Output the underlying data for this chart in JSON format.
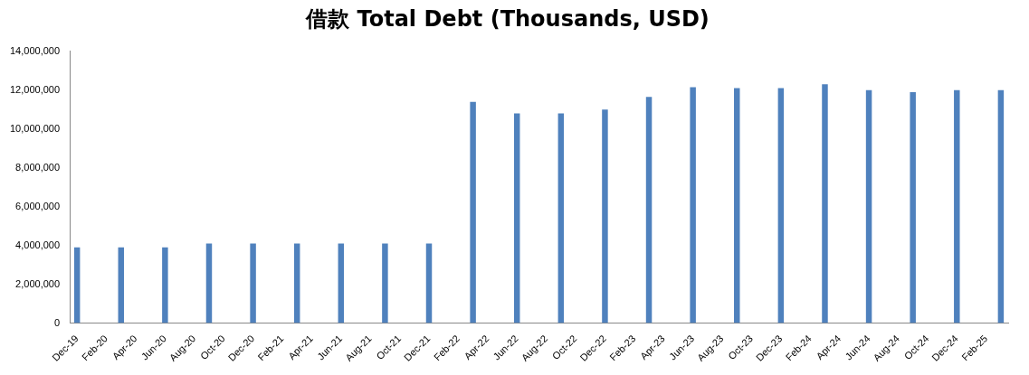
{
  "chart_data": {
    "type": "bar",
    "title": "借款 Total Debt (Thousands, USD)",
    "categories": [
      "Dec-19",
      null,
      "Feb-20",
      null,
      "Apr-20",
      null,
      "Jun-20",
      null,
      "Aug-20",
      null,
      "Oct-20",
      null,
      "Dec-20",
      null,
      "Feb-21",
      null,
      "Apr-21",
      null,
      "Jun-21",
      null,
      "Aug-21",
      null,
      "Oct-21",
      null,
      "Dec-21",
      null,
      "Feb-22",
      null,
      "Apr-22",
      null,
      "Jun-22",
      null,
      "Aug-22",
      null,
      "Oct-22",
      null,
      "Dec-22",
      null,
      "Feb-23",
      null,
      "Apr-23",
      null,
      "Jun-23",
      null,
      "Aug-23",
      null,
      "Oct-23",
      null,
      "Dec-23",
      null,
      "Feb-24",
      null,
      "Apr-24",
      null,
      "Jun-24",
      null,
      "Aug-24",
      null,
      "Oct-24",
      null,
      "Dec-24",
      null,
      "Feb-25",
      null
    ],
    "values": [
      3900000,
      null,
      null,
      3900000,
      null,
      null,
      3900000,
      null,
      null,
      4100000,
      null,
      null,
      4100000,
      null,
      null,
      4100000,
      null,
      null,
      4100000,
      null,
      null,
      4100000,
      null,
      null,
      4100000,
      null,
      null,
      11400000,
      null,
      null,
      10800000,
      null,
      null,
      10800000,
      null,
      null,
      11000000,
      null,
      null,
      11650000,
      null,
      null,
      12150000,
      null,
      null,
      12100000,
      null,
      null,
      12100000,
      null,
      null,
      12300000,
      null,
      null,
      12000000,
      null,
      null,
      11900000,
      null,
      null,
      12000000,
      null,
      null,
      12000000
    ],
    "color": "#4f81bd",
    "ylim": [
      0,
      14000000
    ],
    "yticks": [
      0,
      {
        "value": 2000000,
        "label": "2,000,000"
      },
      {
        "value": 4000000,
        "label": "4,000,000"
      },
      {
        "value": 6000000,
        "label": "6,000,000"
      },
      {
        "value": 8000000,
        "label": "8,000,000"
      },
      {
        "value": 10000000,
        "label": "10,000,000"
      },
      {
        "value": 12000000,
        "label": "12,000,000"
      },
      {
        "value": 14000000,
        "label": "14,000,000"
      }
    ],
    "grid": false,
    "legend": false
  }
}
